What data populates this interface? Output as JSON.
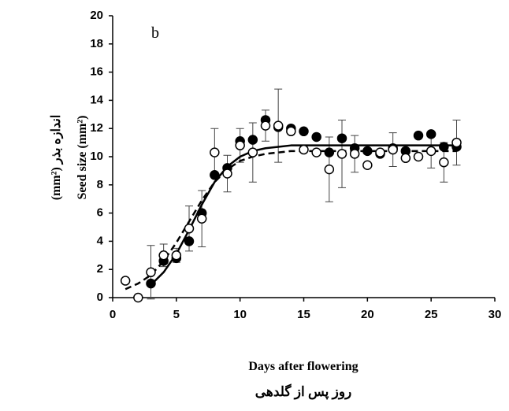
{
  "chart_data": {
    "type": "scatter",
    "panel_label": "b",
    "x_label": "Days after flowering",
    "x_label_fa": "روز پس از گلدهی",
    "y_label": "Seed size (mm²)",
    "y_label_fa": "اندازه بذر (mm²)",
    "xlim": [
      0,
      30
    ],
    "xticks": [
      0,
      5,
      10,
      15,
      20,
      25,
      30
    ],
    "ylim": [
      0,
      20
    ],
    "yticks": [
      0,
      2,
      4,
      6,
      8,
      10,
      12,
      14,
      16,
      18,
      20
    ],
    "grid": false,
    "series": [
      {
        "marker": "filled",
        "color": "#000000",
        "x": [
          3,
          4,
          5,
          6,
          7,
          8,
          9,
          10,
          11,
          12,
          13,
          14,
          15,
          16,
          17,
          18,
          19,
          20,
          21,
          22,
          23,
          24,
          25,
          26,
          27
        ],
        "values": [
          1.0,
          2.6,
          2.8,
          4.0,
          6.0,
          8.7,
          9.2,
          11.1,
          11.2,
          12.6,
          12.1,
          12.0,
          11.8,
          11.4,
          10.3,
          11.3,
          10.6,
          10.4,
          10.2,
          10.6,
          10.4,
          11.5,
          11.6,
          10.7,
          10.7
        ]
      },
      {
        "marker": "open",
        "color": "#000000",
        "x": [
          1,
          2,
          3,
          4,
          5,
          6,
          7,
          8,
          9,
          10,
          11,
          12,
          13,
          14,
          15,
          16,
          17,
          18,
          19,
          20,
          21,
          22,
          23,
          24,
          25,
          26,
          27
        ],
        "values": [
          1.2,
          0,
          1.8,
          3.0,
          3.0,
          4.9,
          5.6,
          10.3,
          8.8,
          10.8,
          10.3,
          12.2,
          12.2,
          11.8,
          10.5,
          10.3,
          9.1,
          10.2,
          10.2,
          9.4,
          10.3,
          10.5,
          9.9,
          10.0,
          10.4,
          9.6,
          11.0
        ],
        "errors": [
          null,
          null,
          1.9,
          0.8,
          0.5,
          1.6,
          2.0,
          1.7,
          1.3,
          1.2,
          2.1,
          1.1,
          2.6,
          null,
          null,
          null,
          2.3,
          2.4,
          1.3,
          null,
          null,
          1.2,
          null,
          null,
          1.2,
          1.4,
          1.6
        ]
      }
    ],
    "fits": [
      {
        "style": "solid",
        "color": "#000000",
        "x": [
          3,
          4,
          5,
          6,
          7,
          8,
          9,
          10,
          11,
          12,
          13,
          14,
          15,
          20,
          27
        ],
        "values": [
          0.9,
          1.8,
          3.1,
          4.8,
          6.6,
          8.2,
          9.3,
          10.0,
          10.4,
          10.6,
          10.7,
          10.8,
          10.8,
          10.8,
          10.8
        ]
      },
      {
        "style": "dashed",
        "color": "#000000",
        "x": [
          1,
          2,
          3,
          4,
          5,
          6,
          7,
          8,
          9,
          10,
          11,
          12,
          13,
          14,
          15,
          20,
          27
        ],
        "values": [
          0.6,
          1.0,
          1.6,
          2.6,
          3.9,
          5.4,
          6.9,
          8.2,
          9.1,
          9.7,
          10.0,
          10.2,
          10.3,
          10.4,
          10.4,
          10.4,
          10.4
        ]
      }
    ]
  }
}
